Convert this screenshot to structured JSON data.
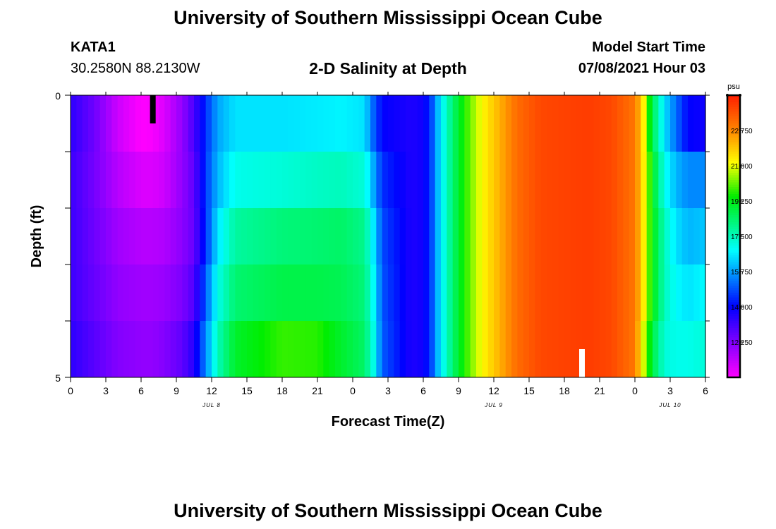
{
  "page": {
    "title": "University of Southern Mississippi Ocean Cube",
    "footer_title": "University of Southern Mississippi Ocean Cube",
    "station": "KATA1",
    "coords": "30.2580N  88.2130W",
    "chart_title": "2-D Salinity at Depth",
    "model_start_label": "Model Start Time",
    "model_start_value": "07/08/2021 Hour 03"
  },
  "chart_data": {
    "type": "heatmap",
    "title": "2-D Salinity at Depth",
    "xlabel": "Forecast Time(Z)",
    "ylabel": "Depth (ft)",
    "x_tick_labels": [
      "0",
      "3",
      "6",
      "9",
      "12",
      "15",
      "18",
      "21",
      "0",
      "3",
      "6",
      "9",
      "12",
      "15",
      "18",
      "21",
      "0",
      "3",
      "6"
    ],
    "x_date_labels": [
      {
        "text": "JUL 8",
        "hour_index": 12
      },
      {
        "text": "JUL 9",
        "hour_index": 36
      },
      {
        "text": "JUL 10",
        "hour_index": 51
      }
    ],
    "x_range_hours": [
      0,
      54
    ],
    "y_tick_labels": [
      "0",
      "5"
    ],
    "y_range": [
      0,
      5
    ],
    "depth_layers": 5,
    "colorbar": {
      "unit": "psu",
      "min": 10.5,
      "max": 24.5,
      "tick_labels": [
        "22.750",
        "21.000",
        "19.250",
        "17.500",
        "15.750",
        "14.000",
        "12.250"
      ],
      "tick_values": [
        22.75,
        21.0,
        19.25,
        17.5,
        15.75,
        14.0,
        12.25
      ]
    },
    "salinity_keyframes": {
      "hours": [
        0,
        2,
        4,
        6,
        7,
        8,
        9.5,
        10.5,
        11.5,
        12.5,
        14,
        18,
        21,
        23,
        25,
        25.8,
        26.5,
        29,
        30,
        30.6,
        31.2,
        32,
        33,
        34,
        35,
        36.5,
        38,
        40,
        44,
        46,
        48,
        48.7,
        49.2,
        49.8,
        50.5,
        51.5,
        52.5,
        54
      ],
      "layers": [
        [
          13.4,
          12.5,
          11.2,
          10.5,
          10.6,
          11.0,
          12.0,
          13.0,
          14.5,
          15.8,
          16.5,
          16.5,
          16.6,
          16.7,
          16.5,
          15.0,
          14.0,
          13.6,
          13.8,
          14.5,
          16.0,
          17.5,
          19.0,
          20.2,
          21.2,
          22.2,
          23.2,
          23.8,
          24.0,
          23.8,
          23.0,
          21.5,
          19.5,
          18.0,
          16.5,
          15.2,
          14.0,
          13.8
        ],
        [
          13.2,
          12.4,
          11.5,
          11.0,
          11.0,
          11.2,
          12.0,
          12.7,
          14.6,
          16.0,
          17.0,
          17.2,
          17.4,
          17.5,
          17.2,
          15.8,
          14.5,
          13.6,
          13.8,
          14.5,
          16.0,
          17.5,
          19.0,
          20.2,
          21.2,
          22.2,
          23.2,
          23.8,
          24.0,
          23.8,
          23.0,
          21.5,
          20.0,
          18.5,
          17.0,
          16.0,
          15.5,
          15.5
        ],
        [
          13.2,
          12.5,
          11.8,
          11.5,
          11.5,
          11.6,
          12.1,
          12.6,
          14.5,
          16.5,
          17.8,
          18.2,
          18.3,
          18.4,
          18.0,
          16.5,
          14.8,
          13.6,
          13.8,
          14.5,
          16.0,
          17.5,
          19.0,
          20.2,
          21.2,
          22.2,
          23.2,
          23.8,
          24.0,
          23.8,
          23.0,
          21.5,
          20.0,
          18.8,
          17.5,
          16.5,
          16.0,
          16.2
        ],
        [
          13.2,
          12.6,
          12.0,
          11.8,
          11.8,
          11.9,
          12.3,
          12.9,
          15.0,
          17.0,
          18.3,
          18.7,
          18.7,
          18.6,
          18.2,
          16.8,
          14.9,
          13.6,
          13.8,
          14.5,
          16.0,
          17.5,
          19.0,
          20.2,
          21.2,
          22.2,
          23.2,
          23.8,
          24.0,
          23.8,
          23.0,
          21.5,
          20.0,
          18.8,
          17.5,
          16.8,
          16.5,
          16.8
        ],
        [
          13.4,
          12.8,
          12.2,
          12.0,
          12.0,
          12.2,
          12.7,
          13.5,
          15.5,
          17.5,
          19.0,
          19.8,
          19.7,
          19.0,
          18.4,
          17.0,
          15.0,
          13.6,
          13.8,
          14.5,
          16.0,
          17.5,
          19.0,
          20.2,
          21.2,
          22.2,
          23.2,
          23.8,
          24.0,
          23.8,
          23.0,
          21.0,
          19.5,
          18.3,
          17.2,
          17.0,
          17.0,
          17.2
        ]
      ]
    },
    "markers": [
      {
        "hour": 7,
        "depth_from": 0,
        "depth_to": 0.5,
        "color": "#000000"
      },
      {
        "hour": 43.5,
        "depth_from": 4.5,
        "depth_to": 5,
        "color": "#ffffff"
      }
    ]
  }
}
